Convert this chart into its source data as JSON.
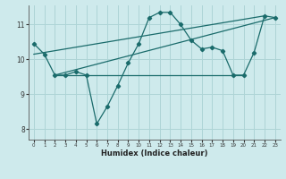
{
  "xlabel": "Humidex (Indice chaleur)",
  "bg_color": "#ceeaec",
  "line_color": "#1a6b6b",
  "grid_color": "#aed4d6",
  "xlim": [
    -0.5,
    23.5
  ],
  "ylim": [
    7.7,
    11.55
  ],
  "yticks": [
    8,
    9,
    10,
    11
  ],
  "xticks": [
    0,
    1,
    2,
    3,
    4,
    5,
    6,
    7,
    8,
    9,
    10,
    11,
    12,
    13,
    14,
    15,
    16,
    17,
    18,
    19,
    20,
    21,
    22,
    23
  ],
  "main_line_x": [
    0,
    1,
    2,
    3,
    4,
    5,
    6,
    7,
    8,
    9,
    10,
    11,
    12,
    13,
    14,
    15,
    16,
    17,
    18,
    19,
    20,
    21,
    22,
    23
  ],
  "main_line_y": [
    10.45,
    10.15,
    9.55,
    9.55,
    9.65,
    9.55,
    8.15,
    8.65,
    9.25,
    9.9,
    10.45,
    11.2,
    11.35,
    11.35,
    11.0,
    10.55,
    10.3,
    10.35,
    10.25,
    9.55,
    9.55,
    10.2,
    11.25,
    11.2
  ],
  "upper_line_x": [
    0,
    22
  ],
  "upper_line_y": [
    10.15,
    11.25
  ],
  "lower_line_x": [
    2,
    20
  ],
  "lower_line_y": [
    9.55,
    9.55
  ],
  "mid_line_x": [
    2,
    23
  ],
  "mid_line_y": [
    9.55,
    11.2
  ]
}
